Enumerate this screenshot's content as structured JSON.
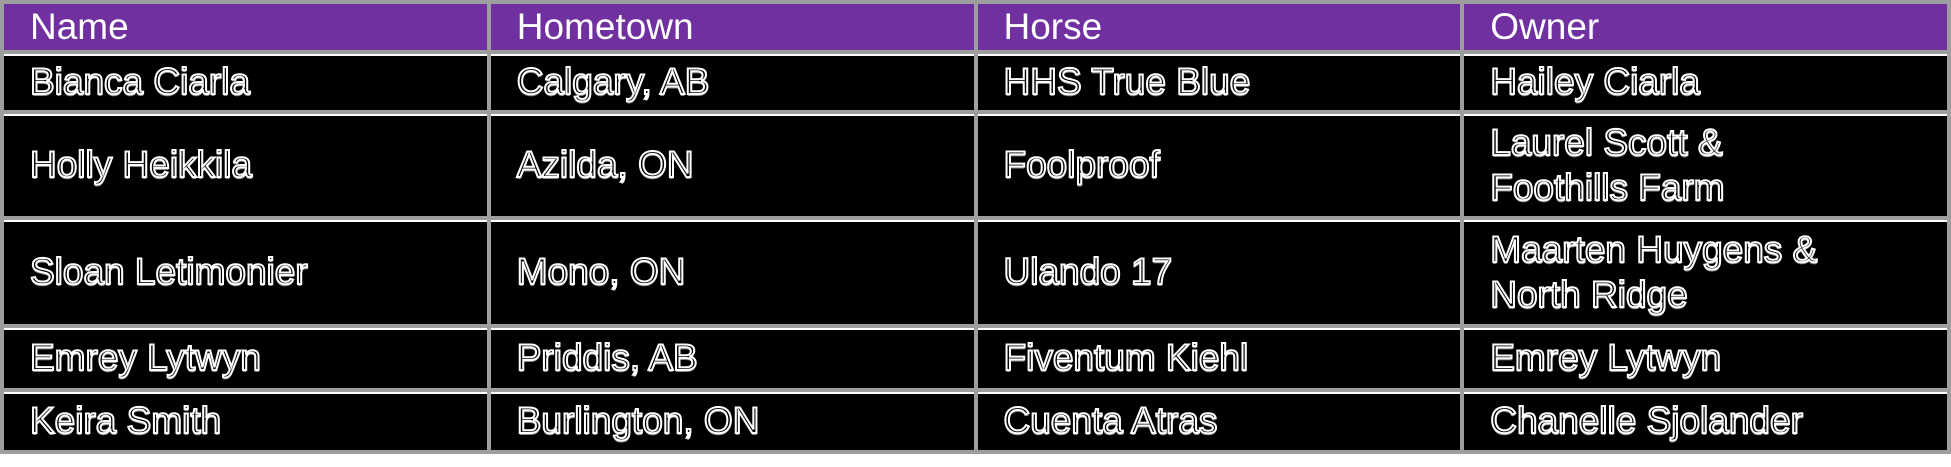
{
  "theme": {
    "header_bg": "#7030A0",
    "header_text": "#FFFFFF",
    "row_bg": "#000000",
    "grid_color": "#9E9E9E",
    "body_text_outline": "#FFFFFF"
  },
  "table": {
    "columns": [
      "Name",
      "Hometown",
      "Horse",
      "Owner"
    ],
    "rows": [
      {
        "name": "Bianca Ciarla",
        "hometown": "Calgary, AB",
        "horse": "HHS True Blue",
        "owner": "Hailey Ciarla"
      },
      {
        "name": "Holly Heikkila",
        "hometown": "Azilda, ON",
        "horse": "Foolproof",
        "owner": "Laurel Scott &\nFoothills Farm"
      },
      {
        "name": "Sloan Letimonier",
        "hometown": "Mono, ON",
        "horse": "Ulando 17",
        "owner": "Maarten Huygens &\nNorth Ridge"
      },
      {
        "name": "Emrey Lytwyn",
        "hometown": "Priddis, AB",
        "horse": "Fiventum Kiehl",
        "owner": "Emrey Lytwyn"
      },
      {
        "name": "Keira Smith",
        "hometown": "Burlington, ON",
        "horse": "Cuenta Atras",
        "owner": "Chanelle Sjolander"
      }
    ]
  }
}
